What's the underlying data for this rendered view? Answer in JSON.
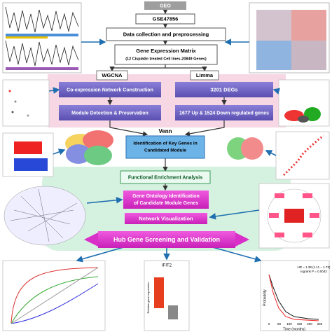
{
  "header": {
    "source": "GEO",
    "accession": "GSE47856",
    "collection": "Data collection and preprocessing",
    "matrix": {
      "title": "Gene Expression Matrix",
      "subtitle": "(12 Cisplatin treated Cell lines-20849 Genes)"
    }
  },
  "branches": {
    "wgcna": {
      "label": "WGCNA",
      "steps": [
        "Co-expression Network Construction",
        "Module Detection & Preservation"
      ]
    },
    "limma": {
      "label": "Limma",
      "steps": [
        "3201 DEGs",
        "1677  Up & 1524 Down regulated genes"
      ]
    }
  },
  "venn": {
    "label": "Venn",
    "lines": [
      "Identification of Key Genes in",
      "Candidated Module"
    ]
  },
  "analysis": {
    "enrichment": "Functional Enrichment Analysis",
    "ontology": [
      "Gene Ontology Identification",
      "of Candidate Module Genes"
    ],
    "network": "Network Visualization",
    "hub": "Hub Gene Screening and Validation"
  },
  "validation": {
    "gene": "IFIT2",
    "box_ylabel": "Relative gene expression",
    "km": {
      "hr": "HR = 1.38 (1.11 − 1.73)",
      "logrank": "logrank P = 0.0042",
      "ylabel": "Probability",
      "xlabel": "Time (months)",
      "xticks": [
        "0",
        "50",
        "100",
        "150",
        "200",
        "250"
      ]
    }
  }
}
